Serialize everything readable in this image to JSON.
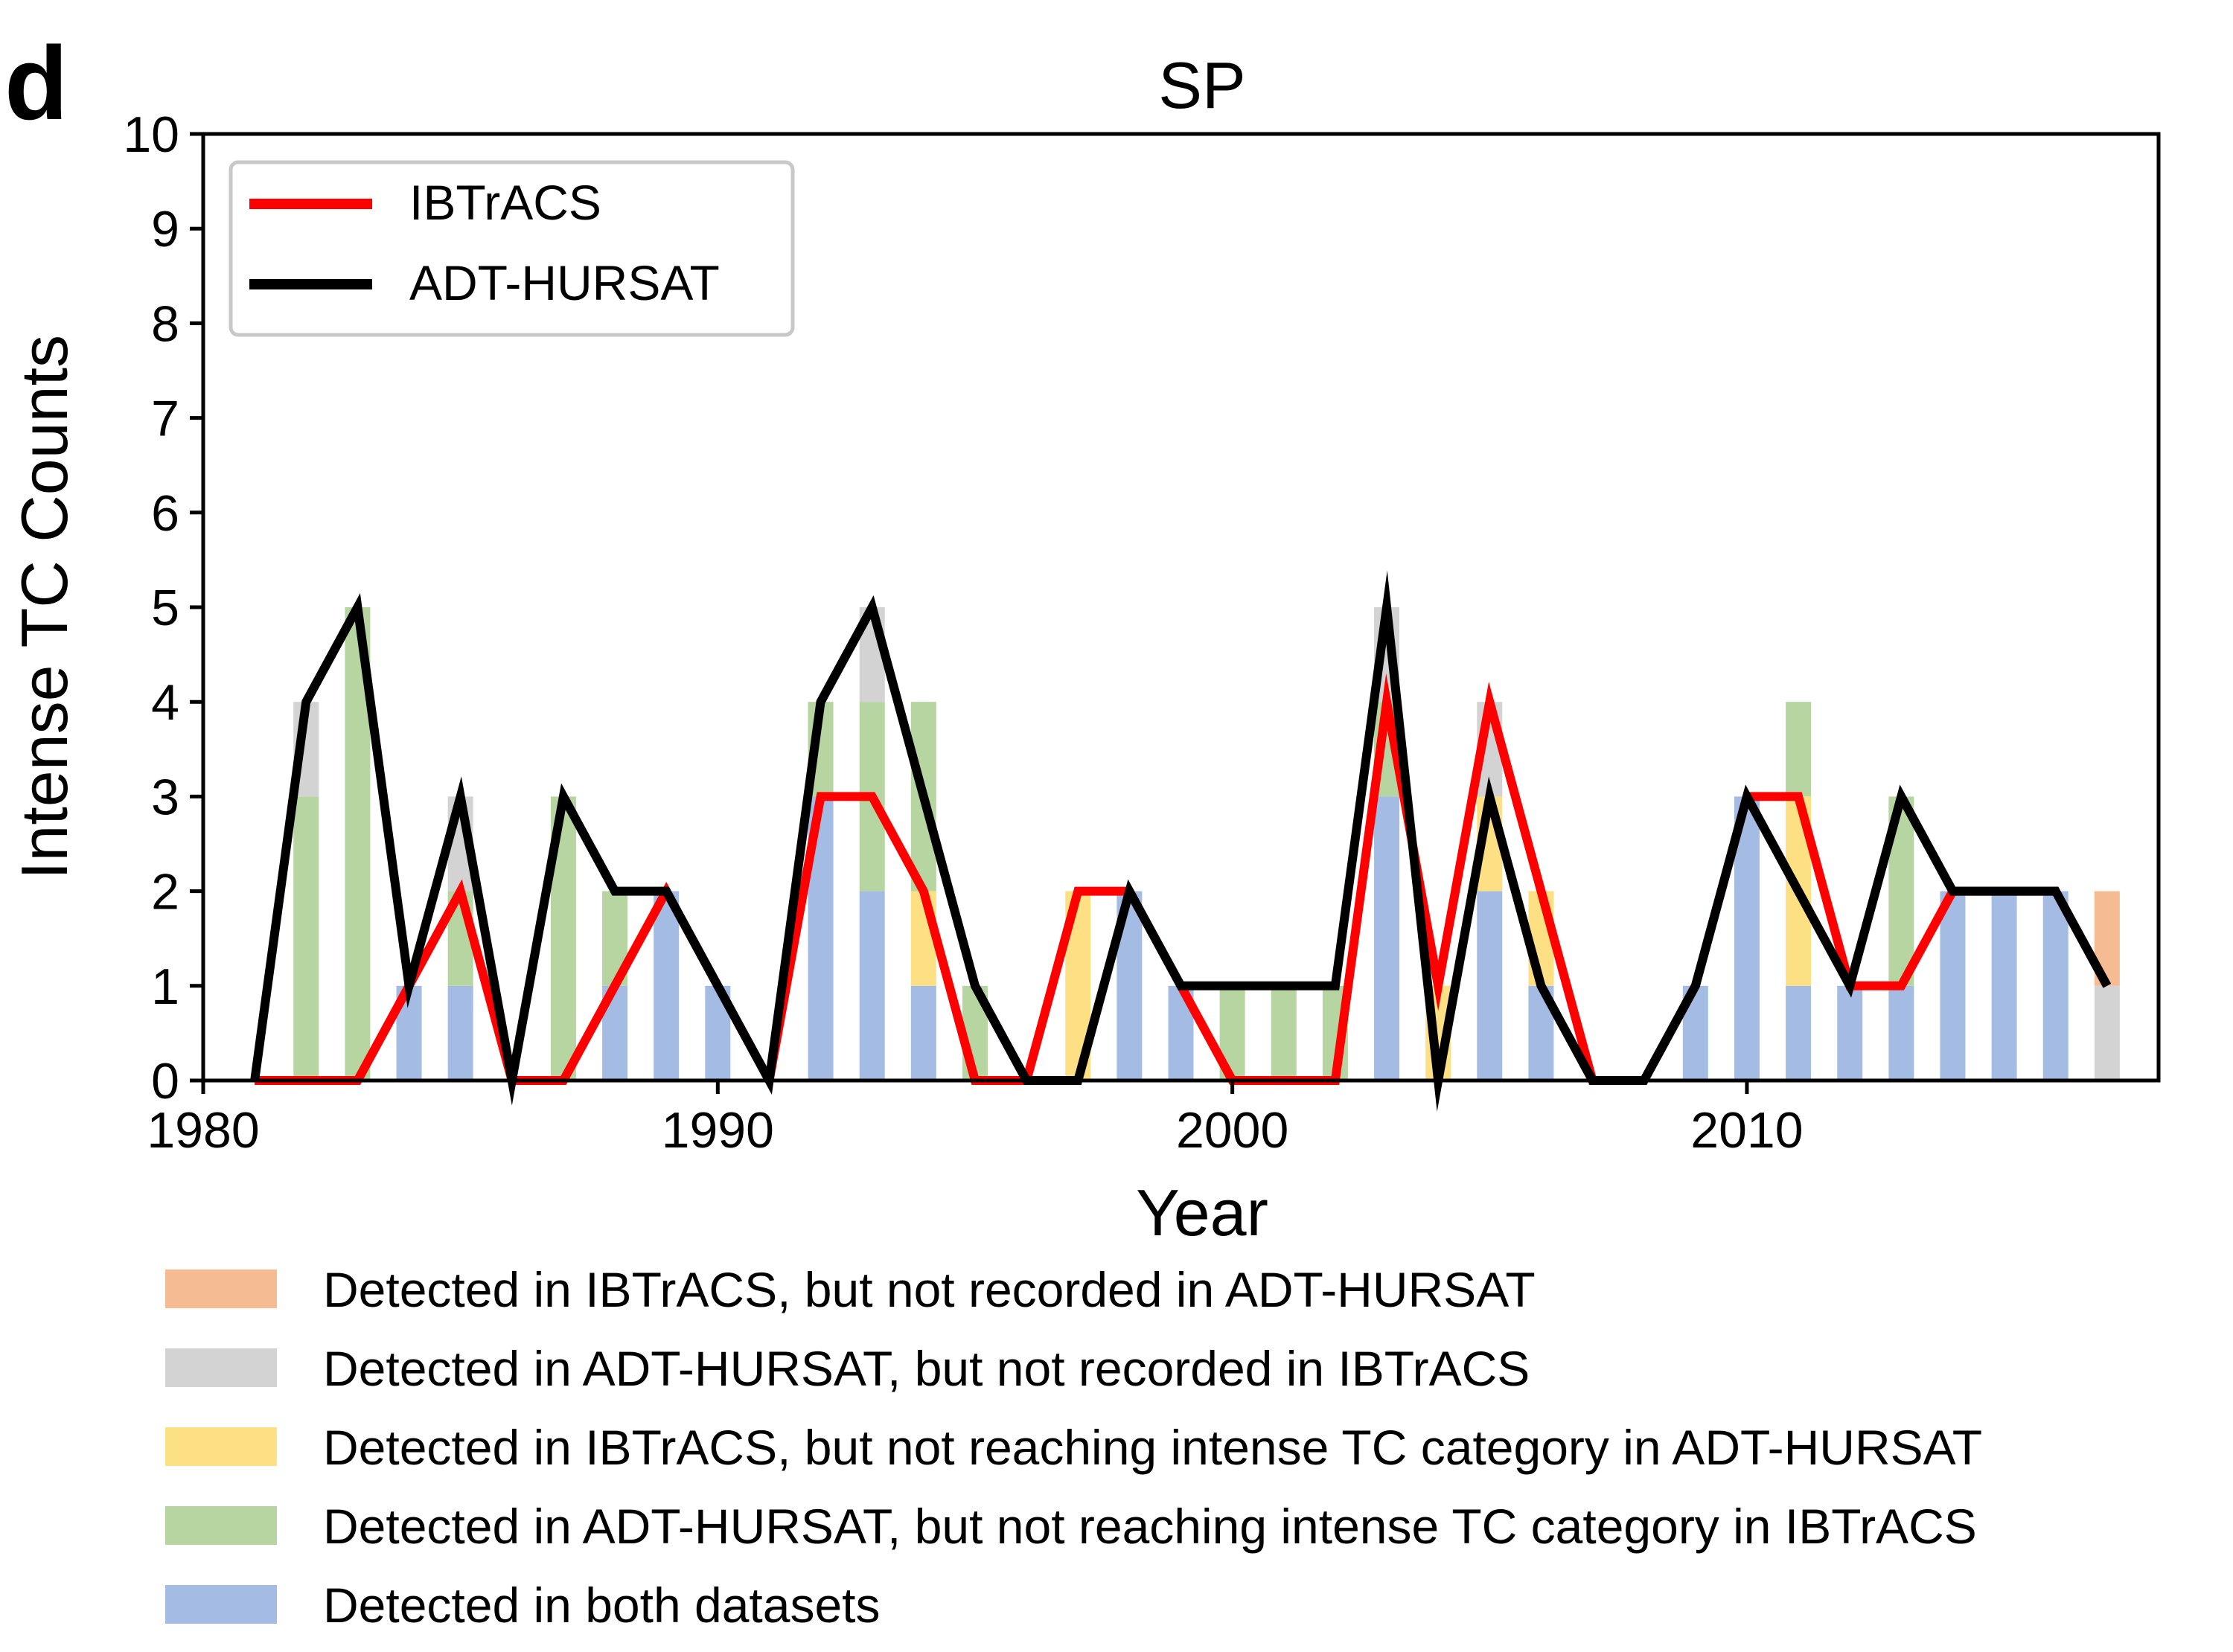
{
  "panel_label": "d",
  "colors": {
    "ibtracs_only": "#f5bc93",
    "adt_only": "#d3d3d3",
    "ibtracs_not_intense_in_adt": "#fde083",
    "adt_not_intense_in_ibtracs": "#b6d5a0",
    "both": "#a4bce3",
    "ibtracs_line": "#ff0000",
    "adt_line": "#000000"
  },
  "bar_legend": [
    {
      "key": "ibtracs_only",
      "label": "Detected in IBTrACS, but not recorded in ADT-HURSAT"
    },
    {
      "key": "adt_only",
      "label": "Detected in ADT-HURSAT, but not recorded in IBTrACS"
    },
    {
      "key": "ibtracs_not_intense_in_adt",
      "label": "Detected in IBTrACS, but not reaching intense TC category in ADT-HURSAT"
    },
    {
      "key": "adt_not_intense_in_ibtracs",
      "label": "Detected in ADT-HURSAT, but not reaching intense TC category in IBTrACS"
    },
    {
      "key": "both",
      "label": "Detected in both datasets"
    }
  ],
  "chart_data": {
    "type": "bar",
    "title": "SP",
    "xlabel": "Year",
    "ylabel": "Intense TC Counts",
    "xlim": [
      1980,
      2018
    ],
    "ylim": [
      0,
      10
    ],
    "xticks": [
      1980,
      1990,
      2000,
      2010
    ],
    "yticks": [
      0,
      1,
      2,
      3,
      4,
      5,
      6,
      7,
      8,
      9,
      10
    ],
    "grid": false,
    "legend_position": "top-left",
    "years": [
      1981,
      1982,
      1983,
      1984,
      1985,
      1986,
      1987,
      1988,
      1989,
      1990,
      1991,
      1992,
      1993,
      1994,
      1995,
      1996,
      1997,
      1998,
      1999,
      2000,
      2001,
      2002,
      2003,
      2004,
      2005,
      2006,
      2007,
      2008,
      2009,
      2010,
      2011,
      2012,
      2013,
      2014,
      2015,
      2016,
      2017
    ],
    "stack_order": [
      "both",
      "ibtracs_not_intense_in_adt",
      "adt_not_intense_in_ibtracs",
      "adt_only",
      "ibtracs_only"
    ],
    "bars": {
      "both": [
        0,
        0,
        0,
        1,
        1,
        0,
        0,
        1,
        2,
        1,
        0,
        3,
        2,
        1,
        0,
        0,
        0,
        2,
        1,
        0,
        0,
        0,
        3,
        0,
        2,
        1,
        0,
        0,
        1,
        3,
        1,
        1,
        1,
        2,
        2,
        2,
        0
      ],
      "ibtracs_not_intense_in_adt": [
        0,
        0,
        0,
        0,
        0,
        0,
        0,
        0,
        0,
        0,
        0,
        0,
        0,
        1,
        0,
        0,
        2,
        0,
        0,
        0,
        0,
        0,
        0,
        1,
        1,
        1,
        0,
        0,
        0,
        0,
        2,
        0,
        0,
        0,
        0,
        0,
        0
      ],
      "adt_not_intense_in_ibtracs": [
        0,
        3,
        5,
        0,
        1,
        0,
        3,
        1,
        0,
        0,
        0,
        1,
        2,
        2,
        1,
        0,
        0,
        0,
        0,
        1,
        1,
        1,
        1,
        0,
        0,
        0,
        0,
        0,
        0,
        0,
        1,
        0,
        2,
        0,
        0,
        0,
        0
      ],
      "adt_only": [
        0,
        1,
        0,
        0,
        1,
        0,
        0,
        0,
        0,
        0,
        0,
        0,
        1,
        0,
        0,
        0,
        0,
        0,
        0,
        0,
        0,
        0,
        1,
        0,
        1,
        0,
        0,
        0,
        0,
        0,
        0,
        0,
        0,
        0,
        0,
        0,
        1
      ],
      "ibtracs_only": [
        0,
        0,
        0,
        0,
        0,
        0,
        0,
        0,
        0,
        0,
        0,
        0,
        0,
        0,
        0,
        0,
        0,
        0,
        0,
        0,
        0,
        0,
        0,
        0,
        0,
        0,
        0,
        0,
        0,
        0,
        0,
        0,
        0,
        0,
        0,
        0,
        1
      ]
    },
    "series": [
      {
        "name": "IBTrACS",
        "color_key": "ibtracs_line",
        "values": [
          0,
          0,
          0,
          1,
          2,
          0,
          0,
          1,
          2,
          1,
          0,
          3,
          3,
          2,
          0,
          0,
          2,
          2,
          1,
          0,
          0,
          0,
          4,
          1,
          4,
          2,
          0,
          0,
          1,
          3,
          3,
          1,
          1,
          2,
          2,
          2,
          1
        ]
      },
      {
        "name": "ADT-HURSAT",
        "color_key": "adt_line",
        "values": [
          0,
          4,
          5,
          1,
          3,
          0,
          3,
          2,
          2,
          1,
          0,
          4,
          5,
          3,
          1,
          0,
          0,
          2,
          1,
          1,
          1,
          1,
          5,
          0,
          3,
          1,
          0,
          0,
          1,
          3,
          2,
          1,
          3,
          2,
          2,
          2,
          1
        ]
      }
    ]
  }
}
